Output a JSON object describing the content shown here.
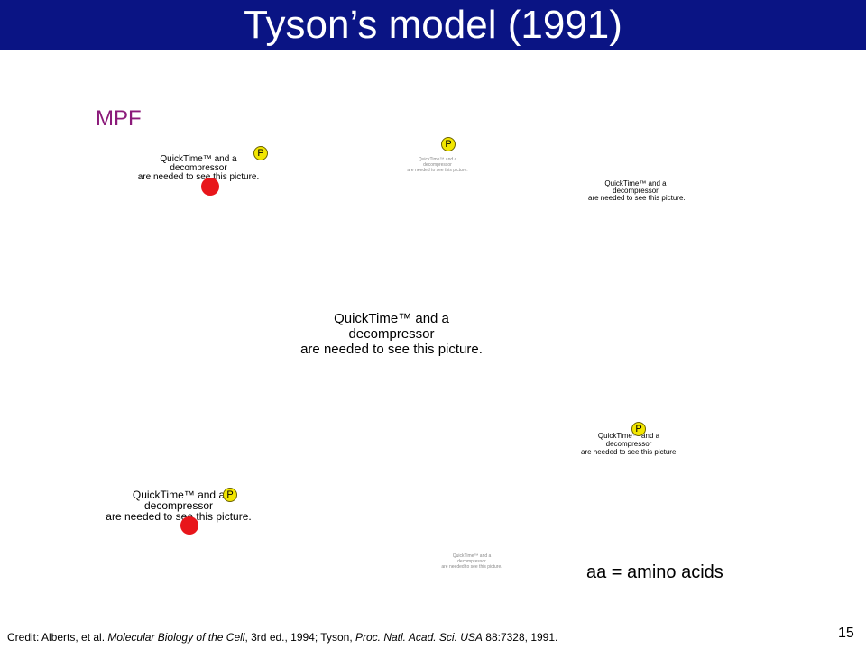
{
  "header": {
    "title": "Tyson’s model (1991)"
  },
  "labels": {
    "mpf": "MPF",
    "p": "P",
    "aa_note": "aa = amino acids",
    "slide_number": "15"
  },
  "placeholder": {
    "line1": "QuickTime™ and a",
    "line2": "decompressor",
    "line3": "are needed to see this picture."
  },
  "credit": {
    "prefix": "Credit: Alberts, et al. ",
    "book": "Molecular Biology of the Cell",
    "mid1": ", 3rd ed., 1994; Tyson, ",
    "journal": "Proc. Natl. Acad. Sci. USA",
    "suffix": " 88:7328, 1991."
  },
  "colors": {
    "title_bar": "#0a1484",
    "mpf_text": "#8b1a7a",
    "p_badge": "#f2e600",
    "red_dot": "#e8161b"
  }
}
